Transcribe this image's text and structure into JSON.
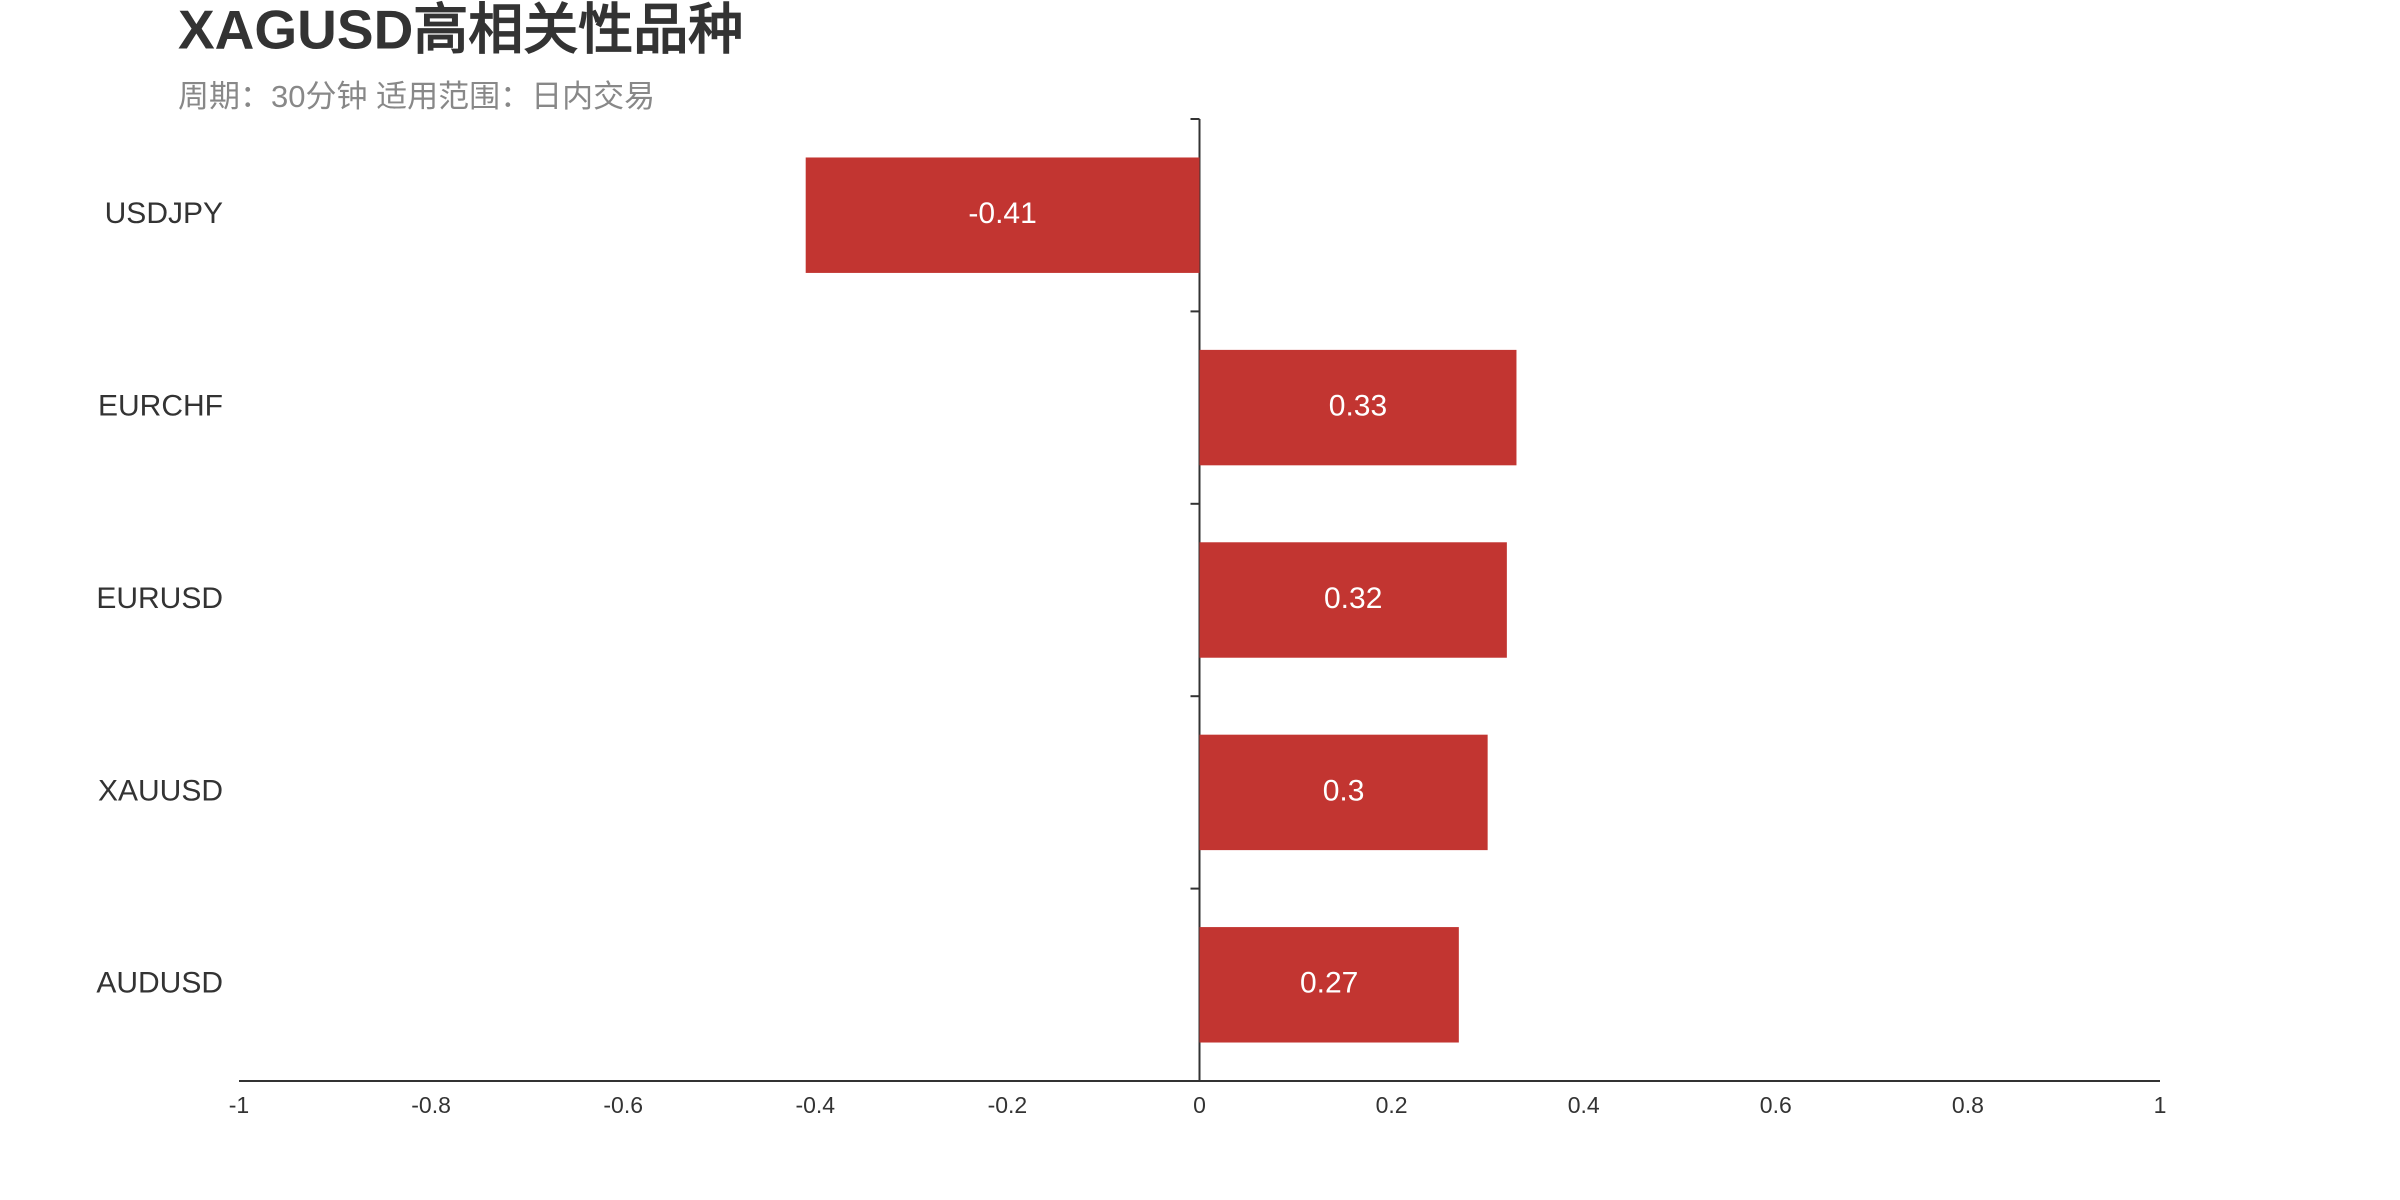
{
  "chart_data": {
    "type": "bar",
    "orientation": "horizontal",
    "title": "XAGUSD高相关性品种",
    "subtitle": "周期：30分钟 适用范围：日内交易",
    "categories": [
      "USDJPY",
      "EURCHF",
      "EURUSD",
      "XAUUSD",
      "AUDUSD"
    ],
    "values": [
      -0.41,
      0.33,
      0.32,
      0.3,
      0.27
    ],
    "color": "#c23531",
    "xlim": [
      -1,
      1
    ],
    "xticks": [
      -1,
      -0.8,
      -0.6,
      -0.4,
      -0.2,
      0,
      0.2,
      0.4,
      0.6,
      0.8,
      1
    ],
    "grid": false
  }
}
